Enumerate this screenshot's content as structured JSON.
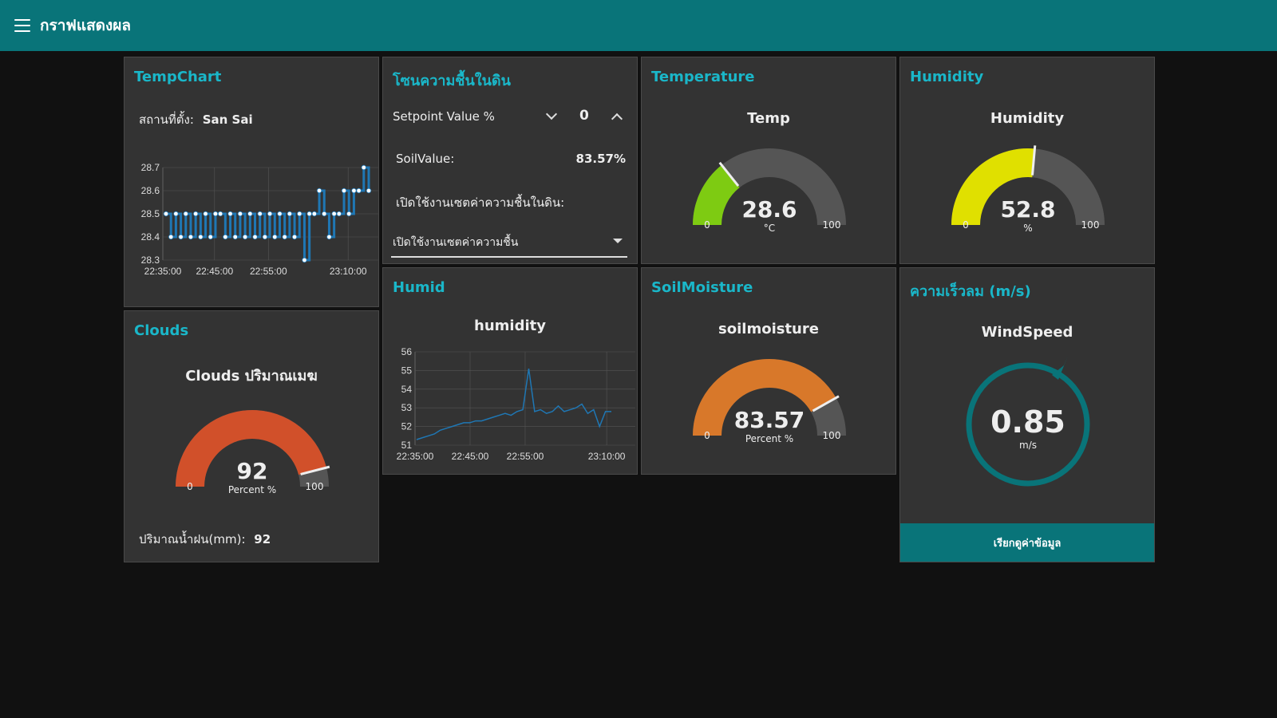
{
  "header": {
    "title": "กราฟแสดงผล",
    "menu_icon": "menu-icon"
  },
  "colors": {
    "accent": "#097479",
    "title": "#1ab7c9",
    "card": "#333333",
    "background": "#111111"
  },
  "tempchart": {
    "title": "TempChart",
    "location_label": "สถานที่ตั้ง:",
    "location_value": "San Sai"
  },
  "soil_zone": {
    "title": "โซนความชื้นในดิน",
    "setpoint_label": "Setpoint Value %",
    "setpoint_value": "0",
    "soil_label": "SoilValue:",
    "soil_value": "83.57%",
    "enable_label": "เปิดใช้งานเซตค่าความชื้นในดิน:",
    "dropdown_value": "เปิดใช้งานเซตค่าความชื้น"
  },
  "temperature": {
    "title": "Temperature",
    "gauge_label": "Temp",
    "value": "28.6",
    "units": "°C",
    "min": "0",
    "max": "100",
    "color": "#7ecb12"
  },
  "humidity": {
    "title": "Humidity",
    "gauge_label": "Humidity",
    "value": "52.8",
    "units": "%",
    "min": "0",
    "max": "100",
    "color": "#e0e000"
  },
  "clouds": {
    "title": "Clouds",
    "gauge_label": "Clouds ปริมาณเมฆ",
    "value": "92",
    "units": "Percent %",
    "min": "0",
    "max": "100",
    "color": "#d1502a",
    "rain_label": "ปริมาณน้ำฝน(mm):",
    "rain_value": "92"
  },
  "humid": {
    "title": "Humid",
    "chart_label": "humidity"
  },
  "soilmoisture": {
    "title": "SoilMoisture",
    "gauge_label": "soilmoisture",
    "value": "83.57",
    "units": "Percent %",
    "min": "0",
    "max": "100",
    "color": "#d8782a"
  },
  "wind": {
    "title": "ความเร็วลม (m/s)",
    "gauge_label": "WindSpeed",
    "value": "0.85",
    "units": "m/s",
    "button_label": "เรียกดูค่าข้อมูล",
    "color": "#097479"
  },
  "chart_data": [
    {
      "type": "line",
      "name": "TempChart",
      "x_ticks": [
        "22:35:00",
        "22:45:00",
        "22:55:00",
        "23:10:00"
      ],
      "y_ticks": [
        "28.3",
        "28.4",
        "28.5",
        "28.6",
        "28.7"
      ],
      "ylim": [
        28.3,
        28.7
      ],
      "xlim_minutes": [
        22.35,
        23.12
      ],
      "series": [
        {
          "values": [
            28.5,
            28.4,
            28.5,
            28.4,
            28.5,
            28.4,
            28.5,
            28.4,
            28.5,
            28.4,
            28.5,
            28.5,
            28.4,
            28.5,
            28.4,
            28.5,
            28.4,
            28.5,
            28.4,
            28.5,
            28.4,
            28.5,
            28.4,
            28.5,
            28.4,
            28.5,
            28.4,
            28.5,
            28.3,
            28.5,
            28.5,
            28.6,
            28.5,
            28.4,
            28.5,
            28.5,
            28.6,
            28.5,
            28.6,
            28.6,
            28.7,
            28.6
          ]
        }
      ],
      "grid": true
    },
    {
      "type": "line",
      "name": "humidity",
      "x_ticks": [
        "22:35:00",
        "22:45:00",
        "22:55:00",
        "23:10:00"
      ],
      "y_ticks": [
        "51",
        "52",
        "53",
        "54",
        "55",
        "56"
      ],
      "ylim": [
        51,
        56
      ],
      "series": [
        {
          "values": [
            51.3,
            51.4,
            51.5,
            51.6,
            51.8,
            51.9,
            52.0,
            52.1,
            52.2,
            52.2,
            52.3,
            52.3,
            52.4,
            52.5,
            52.6,
            52.7,
            52.6,
            52.8,
            52.9,
            55.1,
            52.8,
            52.9,
            52.7,
            52.8,
            53.1,
            52.8,
            52.9,
            53.0,
            53.2,
            52.7,
            52.9,
            52.0,
            52.8,
            52.8
          ]
        }
      ],
      "grid": true
    }
  ]
}
